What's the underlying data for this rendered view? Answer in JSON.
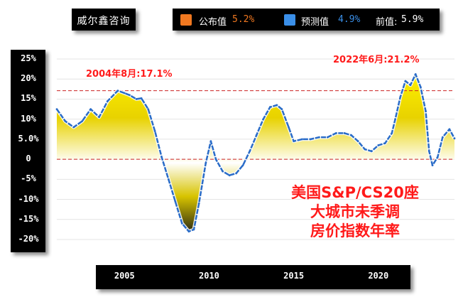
{
  "legend": {
    "source": "威尔鑫咨询",
    "items": [
      {
        "label": "公布值",
        "value": "5.2%",
        "color": "#f07820",
        "value_color": "#f07820"
      },
      {
        "label": "预测值",
        "value": "4.9%",
        "color": "#3a8fe8",
        "value_color": "#3a8fe8"
      }
    ],
    "prev_label": "前值:",
    "prev_value": "5.9%"
  },
  "annotations": {
    "peak_2004": "2004年8月:17.1%",
    "peak_2022": "2022年6月:21.2%"
  },
  "chart_title": [
    "美国S&P/CS20座",
    "大城市未季调",
    "房价指数年率"
  ],
  "chart_data": {
    "type": "area",
    "title": "美国S&P/CS20座大城市未季调房价指数年率",
    "xlabel": "",
    "ylabel": "",
    "ylim": [
      -20,
      25
    ],
    "y_ticks": [
      "25%",
      "20%",
      "15%",
      "10%",
      "5.0%",
      "0",
      "-5%",
      "-10%",
      "-15%",
      "-20%"
    ],
    "y_tick_values": [
      25,
      20,
      15,
      10,
      5,
      0,
      -5,
      -10,
      -15,
      -20
    ],
    "xlim": [
      2001,
      2024.5
    ],
    "x_ticks": [
      "2005",
      "2010",
      "2015",
      "2020"
    ],
    "x_tick_values": [
      2005,
      2010,
      2015,
      2020
    ],
    "reference_lines": [
      17.1,
      0
    ],
    "line_color": "#2a6cc8",
    "fill_top_color": "#fff200",
    "fill_bottom_color": "#111111",
    "grid": true,
    "annotations": [
      "2004年8月:17.1%",
      "2022年6月:21.2%"
    ],
    "series": [
      {
        "x": [
          2001.0,
          2001.5,
          2002.0,
          2002.5,
          2003.0,
          2003.5,
          2004.0,
          2004.6,
          2005.0,
          2005.3,
          2005.7,
          2006.0,
          2006.4,
          2006.8,
          2007.2,
          2007.6,
          2008.0,
          2008.4,
          2008.8,
          2009.1,
          2009.4,
          2009.8,
          2010.1,
          2010.4,
          2010.8,
          2011.2,
          2011.6,
          2012.0,
          2012.4,
          2012.8,
          2013.2,
          2013.6,
          2014.0,
          2014.3,
          2014.7,
          2015.0,
          2015.5,
          2016.0,
          2016.5,
          2017.0,
          2017.5,
          2018.0,
          2018.4,
          2018.8,
          2019.2,
          2019.6,
          2020.0,
          2020.4,
          2020.8,
          2021.0,
          2021.3,
          2021.6,
          2021.9,
          2022.2,
          2022.5,
          2022.8,
          2023.0,
          2023.2,
          2023.5,
          2023.8,
          2024.2,
          2024.5
        ],
        "y": [
          12.5,
          9.5,
          8.0,
          9.5,
          12.5,
          10.5,
          14.5,
          17.1,
          16.5,
          16.0,
          15.0,
          15.2,
          12.5,
          7.0,
          0.5,
          -5.0,
          -10.5,
          -16.0,
          -18.0,
          -17.5,
          -11.0,
          -1.0,
          4.5,
          0.0,
          -3.0,
          -4.0,
          -3.5,
          -1.5,
          2.0,
          6.0,
          10.0,
          13.0,
          13.5,
          12.5,
          8.0,
          4.5,
          5.0,
          5.0,
          5.5,
          5.5,
          6.5,
          6.5,
          6.0,
          4.5,
          2.5,
          2.0,
          3.5,
          4.0,
          6.5,
          10.0,
          15.5,
          19.5,
          18.5,
          21.2,
          18.0,
          12.0,
          2.0,
          -1.5,
          0.5,
          5.5,
          7.5,
          5.2
        ]
      }
    ]
  }
}
